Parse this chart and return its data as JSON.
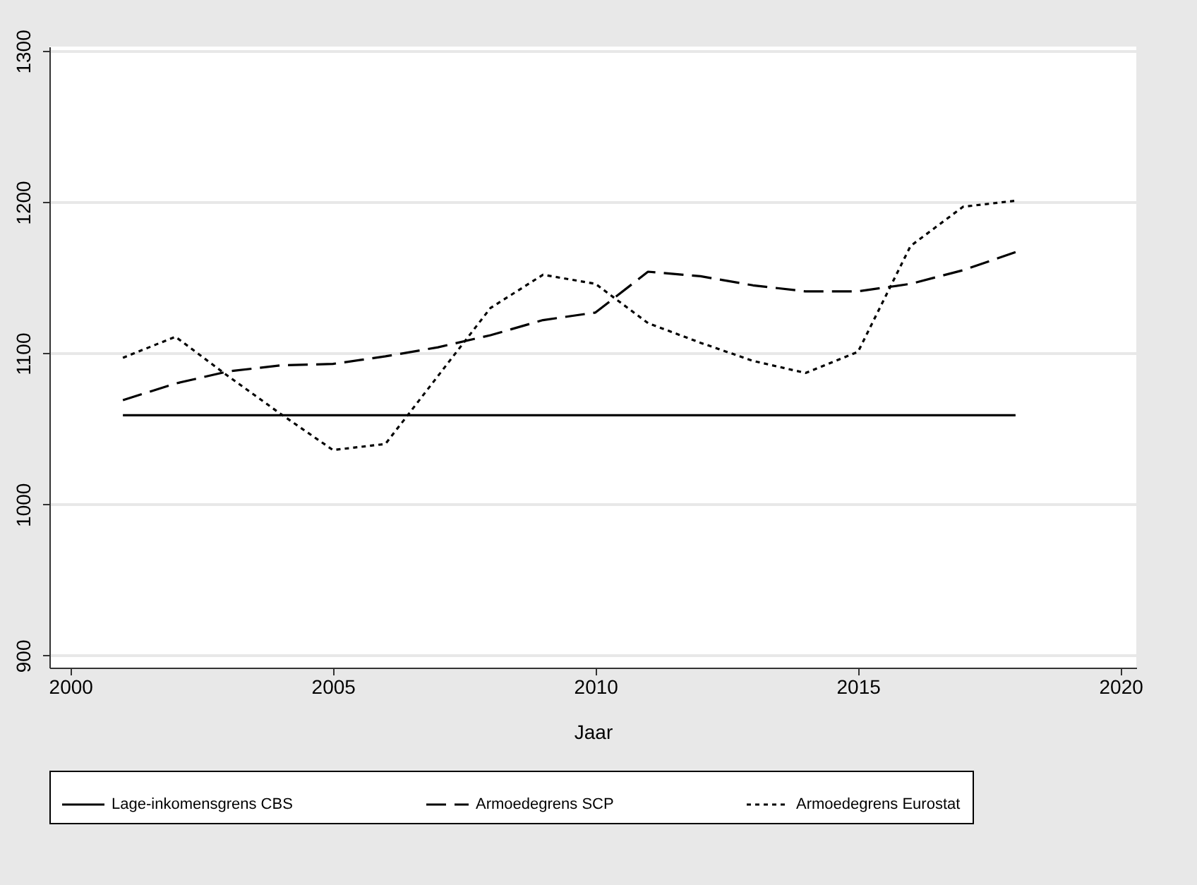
{
  "chart_data": {
    "type": "line",
    "xlabel": "Jaar",
    "x": [
      2001,
      2002,
      2003,
      2004,
      2005,
      2006,
      2007,
      2008,
      2009,
      2010,
      2011,
      2012,
      2013,
      2014,
      2015,
      2016,
      2017,
      2018
    ],
    "series": [
      {
        "name": "Lage-inkomensgrens CBS",
        "color": "#000000",
        "line_style": "solid",
        "values": [
          1059,
          1059,
          1059,
          1059,
          1059,
          1059,
          1059,
          1059,
          1059,
          1059,
          1059,
          1059,
          1059,
          1059,
          1059,
          1059,
          1059,
          1059
        ]
      },
      {
        "name": "Armoedegrens SCP",
        "color": "#000000",
        "line_style": "dashed",
        "values": [
          1069,
          1080,
          1088,
          1092,
          1093,
          1098,
          1104,
          1112,
          1122,
          1127,
          1154,
          1151,
          1145,
          1141,
          1141,
          1146,
          1155,
          1167
        ]
      },
      {
        "name": "Armoedegrens Eurostat",
        "color": "#000000",
        "line_style": "dotted",
        "values": [
          1097,
          1111,
          1085,
          1060,
          1036,
          1040,
          1085,
          1130,
          1152,
          1146,
          1120,
          1107,
          1095,
          1087,
          1101,
          1171,
          1197,
          1201
        ]
      }
    ],
    "xlim": [
      1999.6,
      2020.3
    ],
    "xticks": [
      2000,
      2005,
      2010,
      2015,
      2020
    ],
    "ylim": [
      892,
      1303
    ],
    "yticks": [
      900,
      1000,
      1100,
      1200,
      1300
    ],
    "grid": "y",
    "legend": "bottom"
  }
}
